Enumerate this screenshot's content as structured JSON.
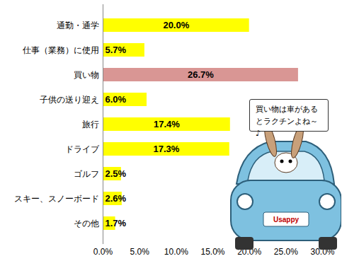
{
  "chart_data": {
    "type": "bar",
    "orientation": "horizontal",
    "categories": [
      "通勤・通学",
      "仕事（業務）に使用",
      "買い物",
      "子供の送り迎え",
      "旅行",
      "ドライブ",
      "ゴルフ",
      "スキー、スノーボード",
      "その他"
    ],
    "values": [
      20.0,
      5.7,
      26.7,
      6.0,
      17.4,
      17.3,
      2.5,
      2.6,
      1.7
    ],
    "value_labels": [
      "20.0%",
      "5.7%",
      "26.7%",
      "6.0%",
      "17.4%",
      "17.3%",
      "2.5%",
      "2.6%",
      "1.7%"
    ],
    "data_labels": true,
    "colors": [
      "#ffff00",
      "#ffff00",
      "#d99694",
      "#ffff00",
      "#ffff00",
      "#ffff00",
      "#ffff00",
      "#ffff00",
      "#ffff00"
    ],
    "xlim": [
      0,
      30
    ],
    "xticks": [
      {
        "value": 0,
        "label": "0.0%"
      },
      {
        "value": 5,
        "label": "5.0%"
      },
      {
        "value": 10,
        "label": "10.0%"
      },
      {
        "value": 15,
        "label": "15.0%"
      },
      {
        "value": 20,
        "label": "20.0%"
      },
      {
        "value": 25,
        "label": "25.0%"
      },
      {
        "value": 30,
        "label": "30.0%"
      }
    ],
    "grid": false,
    "annotations": [
      {
        "text": "買い物は車があるとラクチンよね～♪"
      },
      {
        "text": "Usappy"
      }
    ]
  }
}
